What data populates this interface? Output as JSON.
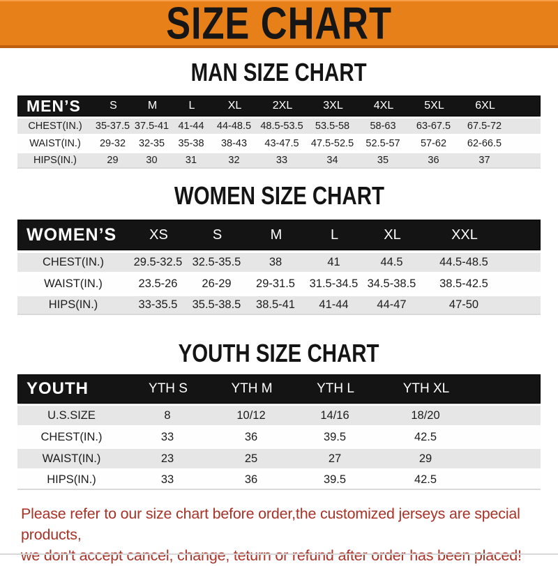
{
  "banner": {
    "title": "SIZE CHART"
  },
  "colors": {
    "banner_orange": "#E8801A",
    "banner_border": "#BD5F0E",
    "header_black": "#141414",
    "row_gray": "#E6E6E6",
    "footer_red": "#A93226"
  },
  "sections": [
    {
      "heading": "MAN SIZE CHART",
      "table": {
        "corner": "MEN’S",
        "columns": [
          "S",
          "M",
          "L",
          "XL",
          "2XL",
          "3XL",
          "4XL",
          "5XL",
          "6XL"
        ],
        "rows": [
          {
            "label": "CHEST(IN.)",
            "values": [
              "35-37.5",
              "37.5-41",
              "41-44",
              "44-48.5",
              "48.5-53.5",
              "53.5-58",
              "58-63",
              "63-67.5",
              "67.5-72"
            ]
          },
          {
            "label": "WAIST(IN.)",
            "values": [
              "29-32",
              "32-35",
              "35-38",
              "38-43",
              "43-47.5",
              "47.5-52.5",
              "52.5-57",
              "57-62",
              "62-66.5"
            ]
          },
          {
            "label": "HIPS(IN.)",
            "values": [
              "29",
              "30",
              "31",
              "32",
              "33",
              "34",
              "35",
              "36",
              "37"
            ]
          }
        ]
      }
    },
    {
      "heading": "WOMEN SIZE CHART",
      "table": {
        "corner": "WOMEN’S",
        "columns": [
          "XS",
          "S",
          "M",
          "L",
          "XL",
          "XXL"
        ],
        "rows": [
          {
            "label": "CHEST(IN.)",
            "values": [
              "29.5-32.5",
              "32.5-35.5",
              "38",
              "41",
              "44.5",
              "44.5-48.5"
            ]
          },
          {
            "label": "WAIST(IN.)",
            "values": [
              "23.5-26",
              "26-29",
              "29-31.5",
              "31.5-34.5",
              "34.5-38.5",
              "38.5-42.5"
            ]
          },
          {
            "label": "HIPS(IN.)",
            "values": [
              "33-35.5",
              "35.5-38.5",
              "38.5-41",
              "41-44",
              "44-47",
              "47-50"
            ]
          }
        ]
      }
    },
    {
      "heading": "YOUTH SIZE CHART",
      "table": {
        "corner": "YOUTH",
        "columns": [
          "YTH S",
          "YTH M",
          "YTH L",
          "YTH XL"
        ],
        "rows": [
          {
            "label": "U.S.SIZE",
            "values": [
              "8",
              "10/12",
              "14/16",
              "18/20"
            ]
          },
          {
            "label": "CHEST(IN.)",
            "values": [
              "33",
              "36",
              "39.5",
              "42.5"
            ]
          },
          {
            "label": "WAIST(IN.)",
            "values": [
              "23",
              "25",
              "27",
              "29"
            ]
          },
          {
            "label": "HIPS(IN.)",
            "values": [
              "33",
              "36",
              "39.5",
              "42.5"
            ]
          }
        ]
      }
    }
  ],
  "footer": {
    "line1": "Please refer to our size chart before order,the customized jerseys are special products,",
    "line2": "we don't accept cancel, change, teturn or refund after order has been placed!"
  }
}
